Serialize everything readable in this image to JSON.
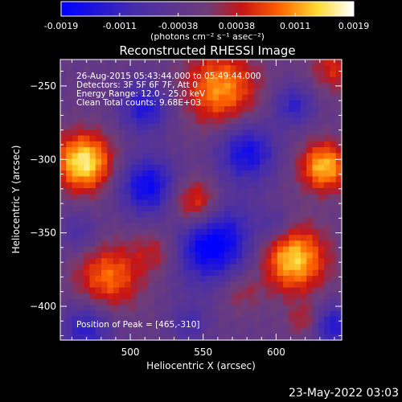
{
  "colorbar": {
    "tick_labels": [
      "-0.0019",
      "-0.0011",
      "-0.00038",
      "0.00038",
      "0.0011",
      "0.0019"
    ],
    "units_label": "(photons cm⁻² s⁻¹ asec⁻²)"
  },
  "annotations": {
    "time_range": "26-Aug-2015 05:43:44.000 to 05:49:44.000",
    "detectors": "Detectors: 3F 5F 6F 7F, Att 0",
    "energy": "Energy Range: 12.0 - 25.0 keV",
    "clean": "Clean     Total counts: 9.68E+03",
    "peak": "Position of Peak = [465,-310]"
  },
  "footer": {
    "timestamp": "23-May-2022 03:03"
  },
  "chart_data": {
    "type": "heatmap",
    "title": "Reconstructed RHESSI Image",
    "xlabel": "Heliocentric X (arcsec)",
    "ylabel": "Heliocentric Y (arcsec)",
    "xlim": [
      452,
      645
    ],
    "ylim": [
      -423,
      -232
    ],
    "x_ticks": [
      500,
      550,
      600
    ],
    "y_ticks": [
      -250,
      -300,
      -350,
      -400
    ],
    "colorbar_range": [
      -0.0019,
      0.0019
    ],
    "peak_position": [
      465,
      -310
    ],
    "blobs": [
      {
        "x": 468,
        "y": -302,
        "s": 14,
        "v": 0.0019
      },
      {
        "x": 562,
        "y": -252,
        "s": 18,
        "v": 0.0014
      },
      {
        "x": 545,
        "y": -332,
        "s": 13,
        "v": 0.0016
      },
      {
        "x": 633,
        "y": -305,
        "s": 12,
        "v": 0.0016
      },
      {
        "x": 612,
        "y": -368,
        "s": 16,
        "v": 0.0017
      },
      {
        "x": 485,
        "y": -380,
        "s": 16,
        "v": 0.0012
      },
      {
        "x": 520,
        "y": -362,
        "s": 12,
        "v": 0.0008
      },
      {
        "x": 575,
        "y": -390,
        "s": 10,
        "v": 0.0006
      },
      {
        "x": 640,
        "y": -238,
        "s": 12,
        "v": 0.0008
      },
      {
        "x": 620,
        "y": -410,
        "s": 8,
        "v": 0.0007
      },
      {
        "x": 555,
        "y": -355,
        "s": 20,
        "v": -0.0019
      },
      {
        "x": 512,
        "y": -318,
        "s": 14,
        "v": -0.0015
      },
      {
        "x": 580,
        "y": -295,
        "s": 14,
        "v": -0.0014
      },
      {
        "x": 510,
        "y": -265,
        "s": 12,
        "v": -0.0012
      },
      {
        "x": 470,
        "y": -415,
        "s": 12,
        "v": -0.0011
      },
      {
        "x": 612,
        "y": -263,
        "s": 10,
        "v": -0.001
      },
      {
        "x": 638,
        "y": -413,
        "s": 10,
        "v": -0.0012
      },
      {
        "x": 600,
        "y": -345,
        "s": 8,
        "v": -0.0006
      },
      {
        "x": 465,
        "y": -350,
        "s": 10,
        "v": -0.0006
      },
      {
        "x": 540,
        "y": -412,
        "s": 9,
        "v": -0.0007
      }
    ]
  }
}
